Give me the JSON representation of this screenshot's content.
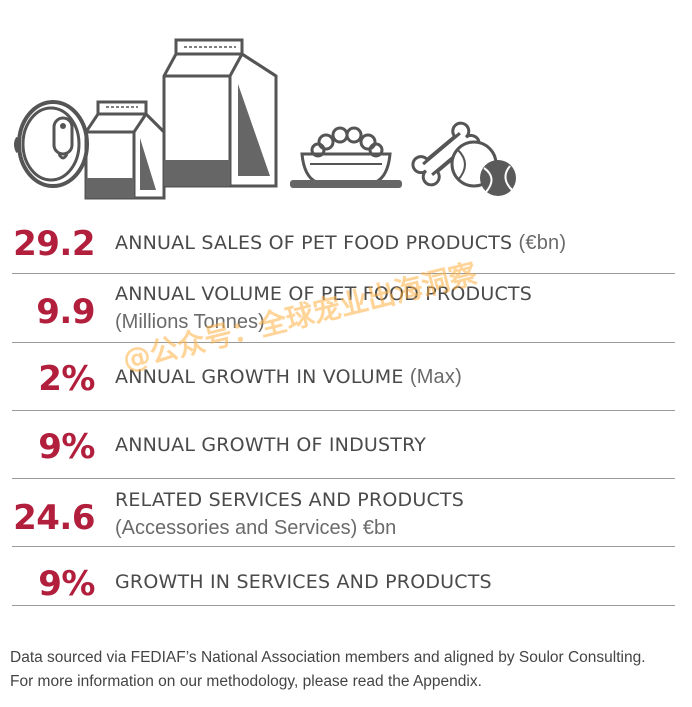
{
  "icons": [
    {
      "name": "pet-food-can-icon"
    },
    {
      "name": "small-pet-food-bag-icon"
    },
    {
      "name": "large-pet-food-bag-icon"
    },
    {
      "name": "pet-food-bowl-icon"
    },
    {
      "name": "bone-and-ball-toy-icon"
    }
  ],
  "stats": [
    {
      "value": "29.2",
      "label": "ANNUAL SALES OF PET FOOD PRODUCTS",
      "unit": "(€bn)",
      "sub": ""
    },
    {
      "value": "9.9",
      "label": "ANNUAL VOLUME OF PET FOOD PRODUCTS",
      "unit": "",
      "sub": "(Millions Tonnes)"
    },
    {
      "value": "2%",
      "label": "ANNUAL GROWTH IN VOLUME",
      "unit": "(Max)",
      "sub": ""
    },
    {
      "value": "9%",
      "label": "ANNUAL GROWTH OF INDUSTRY",
      "unit": "",
      "sub": ""
    },
    {
      "value": "24.6",
      "label": "RELATED SERVICES AND PRODUCTS",
      "unit": "",
      "sub": "(Accessories and Services) €bn"
    },
    {
      "value": "9%",
      "label": "GROWTH IN SERVICES AND PRODUCTS",
      "unit": "",
      "sub": ""
    }
  ],
  "footnote": {
    "line1": "Data sourced via FEDIAF’s National Association members and aligned by Soulor Consulting.",
    "line2": "For more information on our methodology, please read the Appendix."
  },
  "watermark": "@公众号：全球宠业出海洞察",
  "colors": {
    "accent": "#b21f3d",
    "text": "#4a4a4a",
    "icon": "#555555",
    "divider": "#9a9a9a",
    "watermark": "#ffb046"
  }
}
